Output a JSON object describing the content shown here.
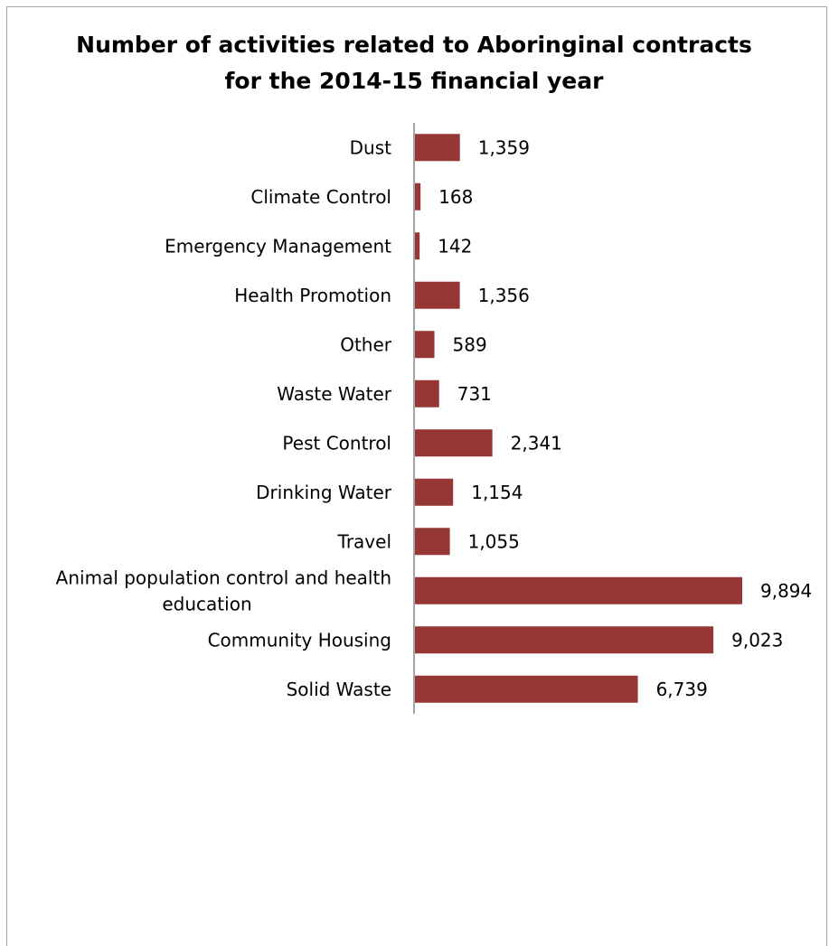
{
  "chart_data": {
    "type": "bar",
    "orientation": "horizontal",
    "title": "Number of activities related to Aboringinal contracts for the 2014-15 financial year",
    "title_lines": [
      "Number of activities related to Aboringinal contracts",
      "for the 2014-15 financial year"
    ],
    "xlabel": "",
    "ylabel": "",
    "categories": [
      "Dust",
      "Climate Control",
      "Emergency Management",
      "Health Promotion",
      "Other",
      "Waste Water",
      "Pest Control",
      "Drinking Water",
      "Travel",
      "Animal population control and health education",
      "Community Housing",
      "Solid Waste"
    ],
    "category_label_lines": [
      [
        "Dust"
      ],
      [
        "Climate Control"
      ],
      [
        "Emergency Management"
      ],
      [
        "Health Promotion"
      ],
      [
        "Other"
      ],
      [
        "Waste Water"
      ],
      [
        "Pest Control"
      ],
      [
        "Drinking Water"
      ],
      [
        "Travel"
      ],
      [
        "Animal population control and health",
        "education"
      ],
      [
        "Community Housing"
      ],
      [
        "Solid Waste"
      ]
    ],
    "values": [
      1359,
      168,
      142,
      1356,
      589,
      731,
      2341,
      1154,
      1055,
      9894,
      9023,
      6739
    ],
    "data_labels": [
      "1,359",
      "168",
      "142",
      "1,356",
      "589",
      "731",
      "2,341",
      "1,154",
      "1,055",
      "9,894",
      "9,023",
      "6,739"
    ],
    "xlim": [
      0,
      10000
    ],
    "bar_color": "#953735",
    "axis_color": "#868686",
    "grid": false,
    "legend": "none"
  }
}
